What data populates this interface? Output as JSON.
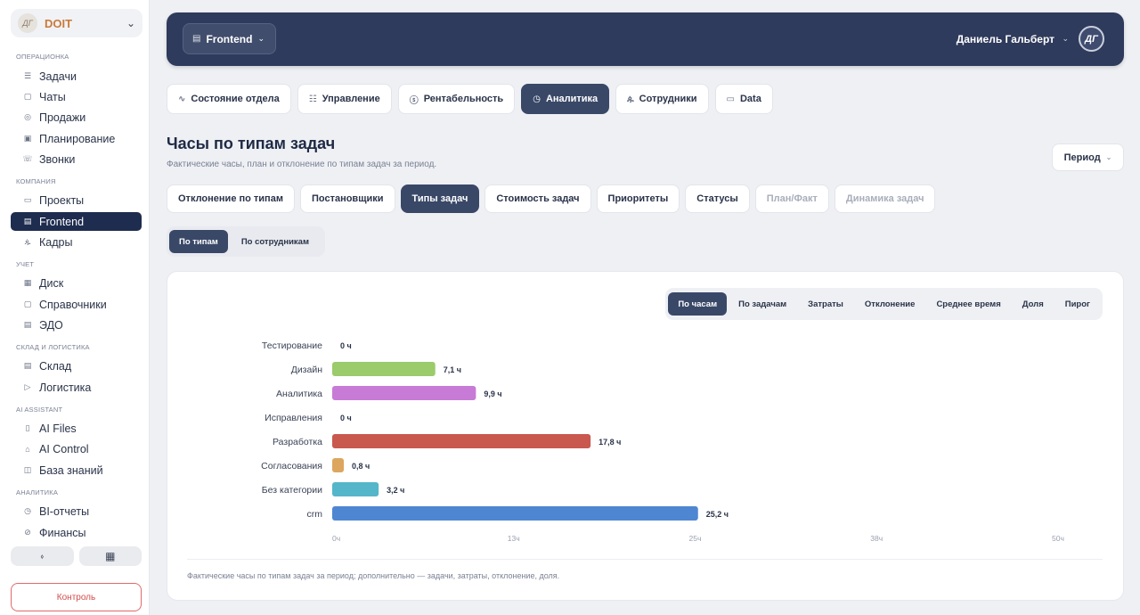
{
  "org": {
    "avatar": "ДГ",
    "name": "DOIT"
  },
  "sidebar": {
    "sections": [
      {
        "title": "ОПЕРАЦИОНКА"
      },
      {
        "title": "КОМПАНИЯ"
      },
      {
        "title": "УЧЕТ"
      },
      {
        "title": "СКЛАД И ЛОГИСТИКА"
      },
      {
        "title": "AI ASSISTANT"
      },
      {
        "title": "АНАЛИТИКА"
      }
    ],
    "items": [
      {
        "label": "Задачи",
        "icon": "tasks-icon"
      },
      {
        "label": "Чаты",
        "icon": "chat-icon"
      },
      {
        "label": "Продажи",
        "icon": "sales-icon"
      },
      {
        "label": "Планирование",
        "icon": "calendar-icon"
      },
      {
        "label": "Звонки",
        "icon": "phone-icon"
      },
      {
        "label": "Проекты",
        "icon": "folder-icon"
      },
      {
        "label": "Frontend",
        "icon": "project-icon"
      },
      {
        "label": "Кадры",
        "icon": "people-icon"
      },
      {
        "label": "Диск",
        "icon": "disk-icon"
      },
      {
        "label": "Справочники",
        "icon": "book-icon"
      },
      {
        "label": "ЭДО",
        "icon": "document-icon"
      },
      {
        "label": "Склад",
        "icon": "warehouse-icon"
      },
      {
        "label": "Логистика",
        "icon": "logistics-icon"
      },
      {
        "label": "AI Files",
        "icon": "file-icon"
      },
      {
        "label": "AI Control",
        "icon": "control-icon"
      },
      {
        "label": "База знаний",
        "icon": "knowledge-icon"
      },
      {
        "label": "BI-отчеты",
        "icon": "report-icon"
      },
      {
        "label": "Финансы",
        "icon": "finance-icon"
      }
    ],
    "control_label": "Контроль"
  },
  "header": {
    "project": "Frontend",
    "user_name": "Даниель Гальберт",
    "user_initials": "ДГ"
  },
  "main_tabs": [
    {
      "label": "Состояние отдела",
      "icon": "pulse-icon"
    },
    {
      "label": "Управление",
      "icon": "sliders-icon"
    },
    {
      "label": "Рентабельность",
      "icon": "money-icon"
    },
    {
      "label": "Аналитика",
      "icon": "clock-icon"
    },
    {
      "label": "Сотрудники",
      "icon": "users-icon"
    },
    {
      "label": "Data",
      "icon": "folder-icon"
    }
  ],
  "page": {
    "title": "Часы по типам задач",
    "subtitle": "Фактические часы, план и отклонение по типам задач за период.",
    "period_label": "Период"
  },
  "sub_tabs": [
    {
      "label": "Отклонение по типам"
    },
    {
      "label": "Постановщики"
    },
    {
      "label": "Типы задач"
    },
    {
      "label": "Стоимость задач"
    },
    {
      "label": "Приоритеты"
    },
    {
      "label": "Статусы"
    },
    {
      "label": "План/Факт"
    },
    {
      "label": "Динамика задач"
    }
  ],
  "view_toggle": [
    {
      "label": "По типам"
    },
    {
      "label": "По сотрудникам"
    }
  ],
  "metric_tabs": [
    {
      "label": "По часам"
    },
    {
      "label": "По задачам"
    },
    {
      "label": "Затраты"
    },
    {
      "label": "Отклонение"
    },
    {
      "label": "Среднее время"
    },
    {
      "label": "Доля"
    },
    {
      "label": "Пирог"
    }
  ],
  "chart_data": {
    "type": "bar",
    "orientation": "horizontal",
    "categories": [
      "Тестирование",
      "Дизайн",
      "Аналитика",
      "Исправления",
      "Разработка",
      "Согласования",
      "Без категории",
      "crm"
    ],
    "values": [
      0,
      7.1,
      9.9,
      0,
      17.8,
      0.8,
      3.2,
      25.2
    ],
    "value_labels": [
      "0 ч",
      "7,1 ч",
      "9,9 ч",
      "0 ч",
      "17,8 ч",
      "0,8 ч",
      "3,2 ч",
      "25,2 ч"
    ],
    "colors": [
      "#9aa0ae",
      "#9bcb6b",
      "#c77bd6",
      "#9aa0ae",
      "#c9584f",
      "#dca65e",
      "#55b6c9",
      "#4f86d2"
    ],
    "xticks": [
      "0ч",
      "13ч",
      "25ч",
      "38ч",
      "50ч"
    ],
    "xlim": [
      0,
      50
    ],
    "grid": false
  },
  "footnote": "Фактические часы по типам задач за период; дополнительно — задачи, затраты, отклонение, доля."
}
